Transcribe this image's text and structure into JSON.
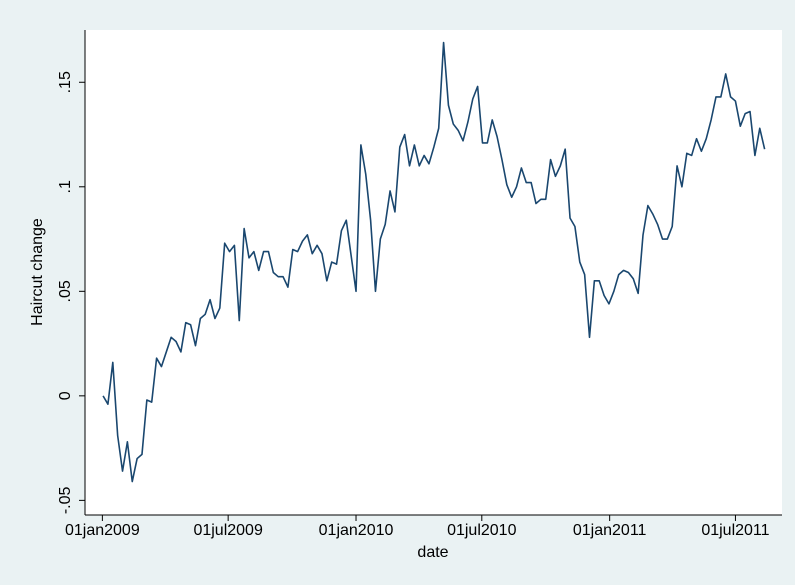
{
  "chart_data": {
    "type": "line",
    "x_label": "date",
    "y_label": "Haircut change",
    "color": "#1a476f",
    "grid": false,
    "x": [
      "2009-01-02",
      "2009-01-09",
      "2009-01-16",
      "2009-01-23",
      "2009-01-30",
      "2009-02-06",
      "2009-02-13",
      "2009-02-20",
      "2009-02-27",
      "2009-03-06",
      "2009-03-13",
      "2009-03-20",
      "2009-03-27",
      "2009-04-03",
      "2009-04-10",
      "2009-04-17",
      "2009-04-24",
      "2009-05-01",
      "2009-05-08",
      "2009-05-15",
      "2009-05-22",
      "2009-05-29",
      "2009-06-05",
      "2009-06-12",
      "2009-06-19",
      "2009-06-26",
      "2009-07-03",
      "2009-07-10",
      "2009-07-17",
      "2009-07-24",
      "2009-07-31",
      "2009-08-07",
      "2009-08-14",
      "2009-08-21",
      "2009-08-28",
      "2009-09-04",
      "2009-09-11",
      "2009-09-18",
      "2009-09-25",
      "2009-10-02",
      "2009-10-09",
      "2009-10-16",
      "2009-10-23",
      "2009-10-30",
      "2009-11-06",
      "2009-11-13",
      "2009-11-20",
      "2009-11-27",
      "2009-12-04",
      "2009-12-11",
      "2009-12-18",
      "2009-12-25",
      "2010-01-01",
      "2010-01-08",
      "2010-01-15",
      "2010-01-22",
      "2010-01-29",
      "2010-02-05",
      "2010-02-12",
      "2010-02-19",
      "2010-02-26",
      "2010-03-05",
      "2010-03-12",
      "2010-03-19",
      "2010-03-26",
      "2010-04-02",
      "2010-04-09",
      "2010-04-16",
      "2010-04-23",
      "2010-04-30",
      "2010-05-07",
      "2010-05-14",
      "2010-05-21",
      "2010-05-28",
      "2010-06-04",
      "2010-06-11",
      "2010-06-18",
      "2010-06-25",
      "2010-07-02",
      "2010-07-09",
      "2010-07-16",
      "2010-07-23",
      "2010-07-30",
      "2010-08-06",
      "2010-08-13",
      "2010-08-20",
      "2010-08-27",
      "2010-09-03",
      "2010-09-10",
      "2010-09-17",
      "2010-09-24",
      "2010-10-01",
      "2010-10-08",
      "2010-10-15",
      "2010-10-22",
      "2010-10-29",
      "2010-11-05",
      "2010-11-12",
      "2010-11-19",
      "2010-11-26",
      "2010-12-03",
      "2010-12-10",
      "2010-12-17",
      "2010-12-24",
      "2010-12-31",
      "2011-01-07",
      "2011-01-14",
      "2011-01-21",
      "2011-01-28",
      "2011-02-04",
      "2011-02-11",
      "2011-02-18",
      "2011-02-25",
      "2011-03-04",
      "2011-03-11",
      "2011-03-18",
      "2011-03-25",
      "2011-04-01",
      "2011-04-08",
      "2011-04-15",
      "2011-04-22",
      "2011-04-29",
      "2011-05-06",
      "2011-05-13",
      "2011-05-20",
      "2011-05-27",
      "2011-06-03",
      "2011-06-10",
      "2011-06-17",
      "2011-06-24",
      "2011-07-01",
      "2011-07-08",
      "2011-07-15",
      "2011-07-22",
      "2011-07-29",
      "2011-08-05",
      "2011-08-12"
    ],
    "values": [
      0,
      -0.004,
      0.016,
      -0.019,
      -0.036,
      -0.022,
      -0.041,
      -0.03,
      -0.028,
      -0.002,
      -0.003,
      0.018,
      0.014,
      0.021,
      0.028,
      0.026,
      0.021,
      0.035,
      0.034,
      0.024,
      0.037,
      0.039,
      0.046,
      0.037,
      0.042,
      0.073,
      0.069,
      0.072,
      0.036,
      0.08,
      0.066,
      0.069,
      0.06,
      0.069,
      0.069,
      0.059,
      0.057,
      0.057,
      0.052,
      0.07,
      0.069,
      0.074,
      0.077,
      0.068,
      0.072,
      0.068,
      0.055,
      0.064,
      0.063,
      0.079,
      0.084,
      0.067,
      0.05,
      0.12,
      0.106,
      0.084,
      0.05,
      0.075,
      0.082,
      0.098,
      0.088,
      0.119,
      0.125,
      0.11,
      0.12,
      0.11,
      0.115,
      0.111,
      0.119,
      0.128,
      0.169,
      0.139,
      0.13,
      0.127,
      0.122,
      0.131,
      0.142,
      0.148,
      0.121,
      0.121,
      0.132,
      0.124,
      0.113,
      0.101,
      0.095,
      0.1,
      0.109,
      0.102,
      0.102,
      0.092,
      0.094,
      0.094,
      0.113,
      0.105,
      0.11,
      0.118,
      0.085,
      0.081,
      0.064,
      0.058,
      0.028,
      0.055,
      0.055,
      0.048,
      0.044,
      0.05,
      0.058,
      0.06,
      0.059,
      0.056,
      0.049,
      0.077,
      0.091,
      0.087,
      0.082,
      0.075,
      0.075,
      0.081,
      0.11,
      0.1,
      0.116,
      0.115,
      0.123,
      0.117,
      0.123,
      0.132,
      0.143,
      0.143,
      0.154,
      0.143,
      0.141,
      0.129,
      0.135,
      0.136,
      0.115,
      0.128,
      0.118
    ],
    "xlim": [
      "2008-12-07",
      "2011-09-06"
    ],
    "xticks": [
      {
        "value": "2009-01-01",
        "label": "01jan2009"
      },
      {
        "value": "2009-07-01",
        "label": "01jul2009"
      },
      {
        "value": "2010-01-01",
        "label": "01jan2010"
      },
      {
        "value": "2010-07-01",
        "label": "01jul2010"
      },
      {
        "value": "2011-01-01",
        "label": "01jan2011"
      },
      {
        "value": "2011-07-01",
        "label": "01jul2011"
      }
    ],
    "ylim": [
      -0.057,
      0.175
    ],
    "yticks": [
      {
        "value": -0.05,
        "label": "-.05"
      },
      0,
      {
        "value": 0.05,
        "label": ".05"
      },
      {
        "value": 0.1,
        "label": ".1"
      },
      {
        "value": 0.15,
        "label": ".15"
      }
    ]
  }
}
